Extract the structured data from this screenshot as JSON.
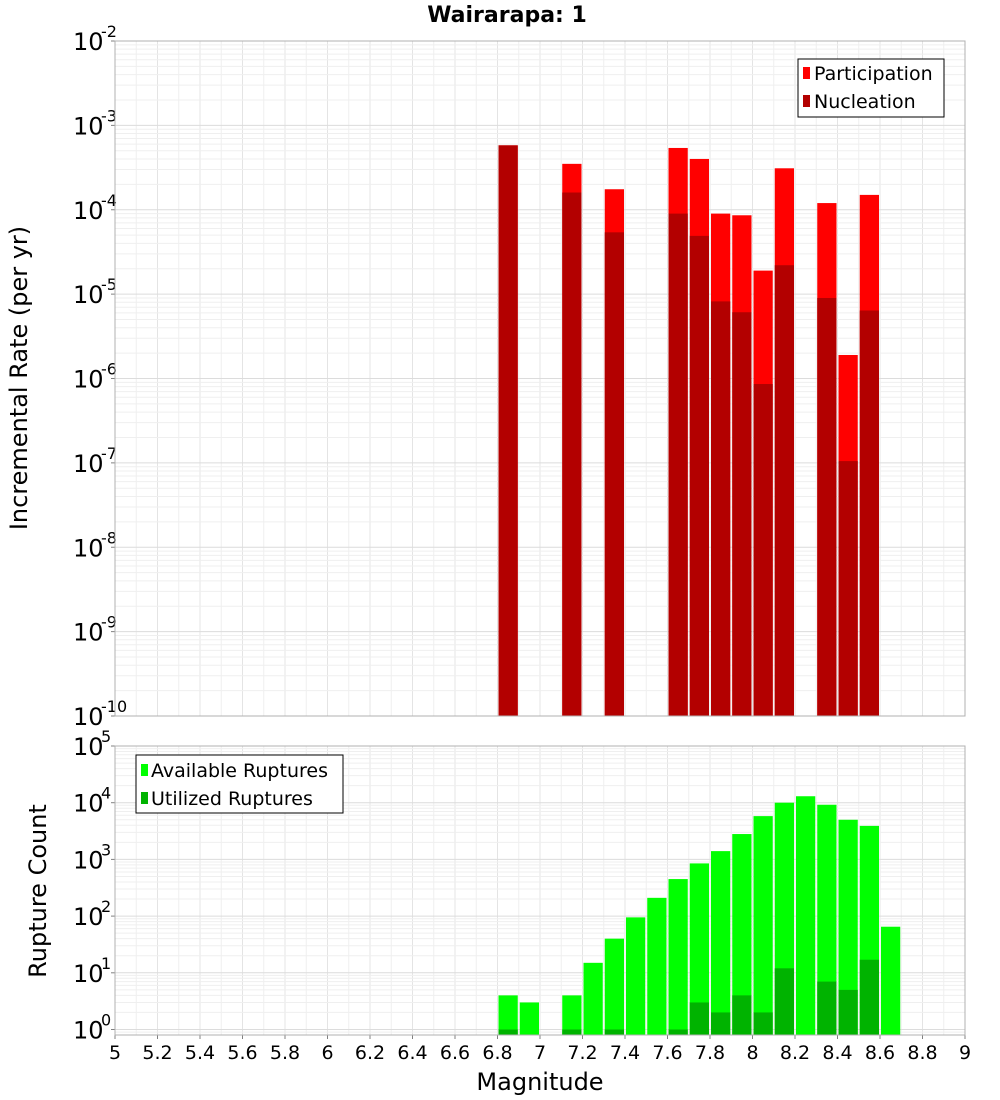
{
  "chart_data": [
    {
      "type": "bar",
      "title": "Wairarapa: 1",
      "xlabel": "",
      "ylabel": "Incremental Rate (per yr)",
      "yscale": "log",
      "xlim": [
        5,
        9
      ],
      "ylim": [
        1e-10,
        0.01
      ],
      "ytick_exponents": [
        -10,
        -9,
        -8,
        -7,
        -6,
        -5,
        -4,
        -3,
        -2
      ],
      "grid": true,
      "legend_position": "top-right",
      "bar_width": 0.1,
      "series": [
        {
          "name": "Participation",
          "color": "#ff0000",
          "x": [
            6.85,
            7.15,
            7.35,
            7.65,
            7.75,
            7.85,
            7.95,
            8.05,
            8.15,
            8.35,
            8.45,
            8.55
          ],
          "values": [
            0.00058,
            0.00035,
            0.000175,
            0.00054,
            0.0004,
            9e-05,
            8.6e-05,
            1.9e-05,
            0.00031,
            0.00012,
            1.9e-06,
            0.00015
          ]
        },
        {
          "name": "Nucleation",
          "color": "#b30000",
          "x": [
            6.85,
            7.15,
            7.35,
            7.65,
            7.75,
            7.85,
            7.95,
            8.05,
            8.15,
            8.35,
            8.45,
            8.55
          ],
          "values": [
            0.00058,
            0.00016,
            5.4e-05,
            9e-05,
            4.9e-05,
            8.2e-06,
            6.1e-06,
            8.6e-07,
            2.2e-05,
            9e-06,
            1.05e-07,
            6.4e-06
          ]
        }
      ]
    },
    {
      "type": "bar",
      "title": "",
      "xlabel": "Magnitude",
      "ylabel": "Rupture Count",
      "yscale": "log",
      "xlim": [
        5,
        9
      ],
      "ylim": [
        0.8,
        100000.0
      ],
      "ytick_exponents": [
        0,
        1,
        2,
        3,
        4,
        5
      ],
      "x_ticks": [
        "5",
        "5.2",
        "5.4",
        "5.6",
        "5.8",
        "6",
        "6.2",
        "6.4",
        "6.6",
        "6.8",
        "7",
        "7.2",
        "7.4",
        "7.6",
        "7.8",
        "8",
        "8.2",
        "8.4",
        "8.6",
        "8.8",
        "9"
      ],
      "grid": true,
      "legend_position": "top-left",
      "bar_width": 0.1,
      "series": [
        {
          "name": "Available Ruptures",
          "color": "#00ff00",
          "x": [
            6.85,
            6.95,
            7.15,
            7.25,
            7.35,
            7.45,
            7.55,
            7.65,
            7.75,
            7.85,
            7.95,
            8.05,
            8.15,
            8.25,
            8.35,
            8.45,
            8.55,
            8.65
          ],
          "values": [
            4,
            3,
            4,
            15,
            40,
            95,
            210,
            450,
            850,
            1400,
            2800,
            5800,
            10000,
            13000,
            9200,
            5000,
            3900,
            65
          ]
        },
        {
          "name": "Utilized Ruptures",
          "color": "#00b300",
          "x": [
            6.85,
            7.15,
            7.35,
            7.65,
            7.75,
            7.85,
            7.95,
            8.05,
            8.15,
            8.35,
            8.45,
            8.55
          ],
          "values": [
            1,
            1,
            1,
            1,
            3,
            2,
            4,
            2,
            12,
            7,
            5,
            17
          ]
        }
      ]
    }
  ]
}
